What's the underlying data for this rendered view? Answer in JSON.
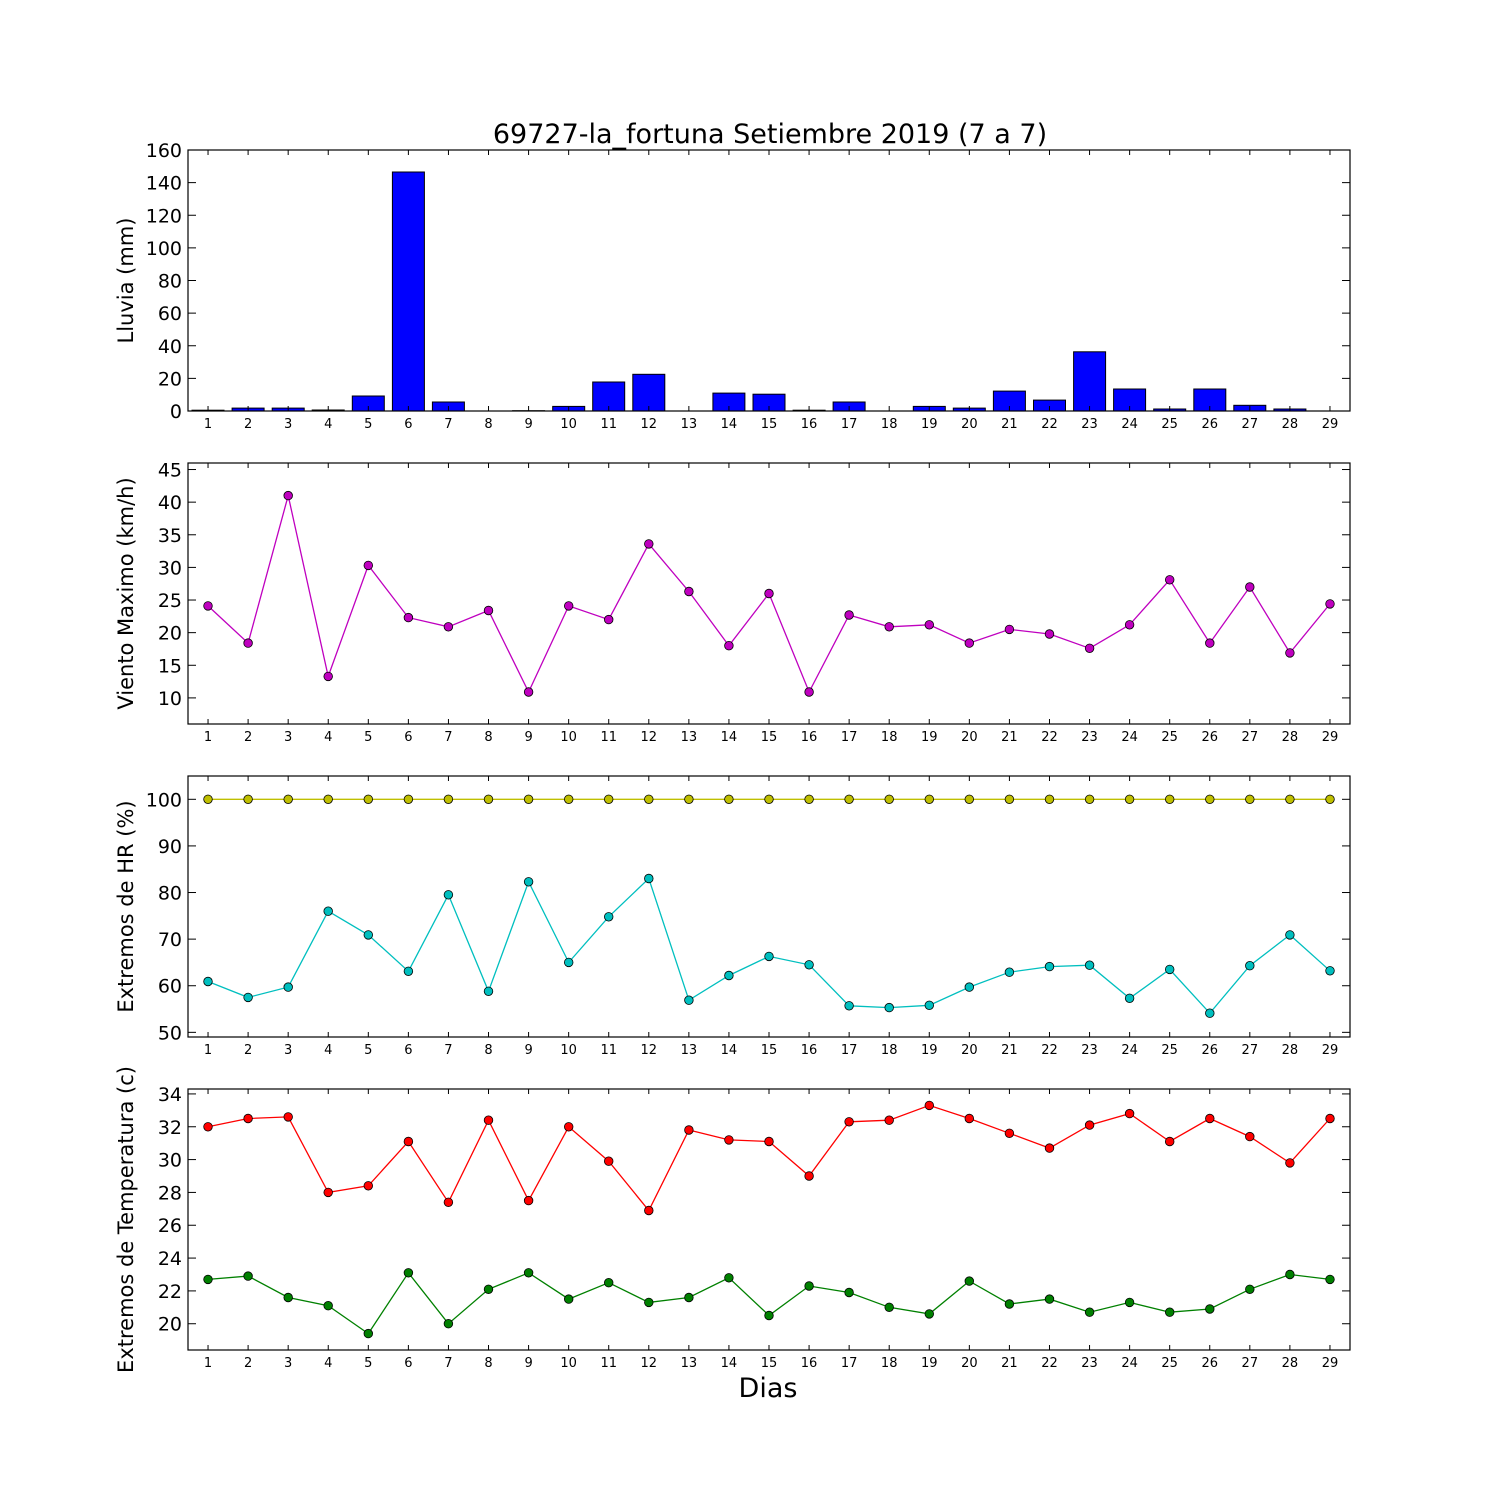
{
  "figure": {
    "title": "69727-la_fortuna Setiembre 2019  (7 a 7)",
    "xlabel": "Dias"
  },
  "chart_data": [
    {
      "type": "bar",
      "name": "lluvia",
      "ylabel": "Lluvia (mm)",
      "ylim": [
        0,
        160
      ],
      "yticks": [
        0,
        20,
        40,
        60,
        80,
        100,
        120,
        140,
        160
      ],
      "categories": [
        1,
        2,
        3,
        4,
        5,
        6,
        7,
        8,
        9,
        10,
        11,
        12,
        13,
        14,
        15,
        16,
        17,
        18,
        19,
        20,
        21,
        22,
        23,
        24,
        25,
        26,
        27,
        28,
        29
      ],
      "series": [
        {
          "color": "#0000ff",
          "values": [
            0.5,
            1.8,
            1.8,
            0.6,
            9.2,
            146.5,
            5.5,
            0,
            0.2,
            2.8,
            17.8,
            22.5,
            0,
            11,
            10.3,
            0.5,
            5.5,
            0,
            2.8,
            1.8,
            12.2,
            6.7,
            36.3,
            13.5,
            1.2,
            13.5,
            3.5,
            1.2,
            0
          ]
        }
      ]
    },
    {
      "type": "line",
      "name": "viento",
      "ylabel": "Viento Maximo (km/h)",
      "ylim": [
        6,
        46
      ],
      "yticks": [
        10,
        15,
        20,
        25,
        30,
        35,
        40,
        45
      ],
      "x": [
        1,
        2,
        3,
        4,
        5,
        6,
        7,
        8,
        9,
        10,
        11,
        12,
        13,
        14,
        15,
        16,
        17,
        18,
        19,
        20,
        21,
        22,
        23,
        24,
        25,
        26,
        27,
        28,
        29
      ],
      "series": [
        {
          "color": "#bf00bf",
          "values": [
            24.1,
            18.4,
            41.0,
            13.3,
            30.3,
            22.3,
            20.9,
            23.4,
            10.9,
            24.1,
            22.0,
            33.6,
            26.3,
            18.0,
            26.0,
            10.9,
            22.7,
            20.9,
            21.2,
            18.4,
            20.5,
            19.8,
            17.6,
            21.2,
            28.1,
            18.4,
            27.0,
            16.9,
            24.4
          ]
        }
      ]
    },
    {
      "type": "line",
      "name": "humedad",
      "ylabel": "Extremos de HR (%)",
      "ylim": [
        49,
        105
      ],
      "yticks": [
        50,
        60,
        70,
        80,
        90,
        100
      ],
      "x": [
        1,
        2,
        3,
        4,
        5,
        6,
        7,
        8,
        9,
        10,
        11,
        12,
        13,
        14,
        15,
        16,
        17,
        18,
        19,
        20,
        21,
        22,
        23,
        24,
        25,
        26,
        27,
        28,
        29
      ],
      "series": [
        {
          "color": "#bfbf00",
          "values": [
            100,
            100,
            100,
            100,
            100,
            100,
            100,
            100,
            100,
            100,
            100,
            100,
            100,
            100,
            100,
            100,
            100,
            100,
            100,
            100,
            100,
            100,
            100,
            100,
            100,
            100,
            100,
            100,
            100
          ]
        },
        {
          "color": "#00bfbf",
          "values": [
            60.9,
            57.5,
            59.7,
            76.0,
            70.9,
            63.1,
            79.5,
            58.8,
            82.3,
            65.0,
            74.8,
            83.0,
            56.9,
            62.2,
            66.3,
            64.5,
            55.7,
            55.3,
            55.8,
            59.7,
            62.9,
            64.1,
            64.4,
            57.3,
            63.5,
            54.1,
            64.3,
            70.9,
            63.2
          ]
        }
      ]
    },
    {
      "type": "line",
      "name": "temperatura",
      "ylabel": "Extremos de Temperatura (c)",
      "ylim": [
        18.4,
        34.3
      ],
      "yticks": [
        20,
        22,
        24,
        26,
        28,
        30,
        32,
        34
      ],
      "x": [
        1,
        2,
        3,
        4,
        5,
        6,
        7,
        8,
        9,
        10,
        11,
        12,
        13,
        14,
        15,
        16,
        17,
        18,
        19,
        20,
        21,
        22,
        23,
        24,
        25,
        26,
        27,
        28,
        29
      ],
      "series": [
        {
          "color": "#ff0000",
          "values": [
            32.0,
            32.5,
            32.6,
            28.0,
            28.4,
            31.1,
            27.4,
            32.4,
            27.5,
            32.0,
            29.9,
            26.9,
            31.8,
            31.2,
            31.1,
            29.0,
            32.3,
            32.4,
            33.3,
            32.5,
            31.6,
            30.7,
            32.1,
            32.8,
            31.1,
            32.5,
            31.4,
            29.8,
            32.5
          ]
        },
        {
          "color": "#008000",
          "values": [
            22.7,
            22.9,
            21.6,
            21.1,
            19.4,
            23.1,
            20.0,
            22.1,
            23.1,
            21.5,
            22.5,
            21.3,
            21.6,
            22.8,
            20.5,
            22.3,
            21.9,
            21.0,
            20.6,
            22.6,
            21.2,
            21.5,
            20.7,
            21.3,
            20.7,
            20.9,
            22.1,
            23.0,
            22.7
          ]
        }
      ]
    }
  ]
}
